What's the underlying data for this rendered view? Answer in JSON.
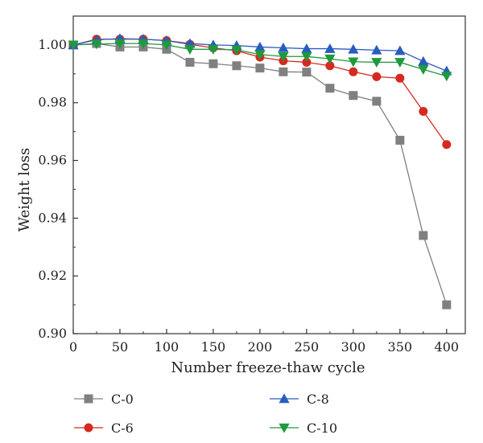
{
  "chart_data": {
    "type": "line",
    "title": "",
    "xlabel": "Number freeze-thaw cycle",
    "ylabel": "Weight loss",
    "xlim": [
      0,
      420
    ],
    "ylim": [
      0.9,
      1.01
    ],
    "xticks": [
      "0",
      "50",
      "100",
      "150",
      "200",
      "250",
      "300",
      "350",
      "400"
    ],
    "yticks": [
      "0.90",
      "0.92",
      "0.94",
      "0.96",
      "0.98",
      "1.00"
    ],
    "x": [
      0,
      25,
      50,
      75,
      100,
      125,
      150,
      175,
      200,
      225,
      250,
      275,
      300,
      325,
      350,
      375,
      400
    ],
    "grid": false,
    "legend_position": "bottom",
    "series": [
      {
        "name": "C-0",
        "color": "#808080",
        "marker": "square",
        "values": [
          1.0,
          1.0005,
          0.9993,
          0.9993,
          0.9985,
          0.994,
          0.9935,
          0.9928,
          0.992,
          0.9907,
          0.9906,
          0.985,
          0.9825,
          0.9805,
          0.967,
          0.934,
          0.91
        ]
      },
      {
        "name": "C-6",
        "color": "#d42a20",
        "marker": "circle",
        "values": [
          1.0,
          1.002,
          1.002,
          1.002,
          1.0015,
          1.0002,
          0.999,
          0.998,
          0.9958,
          0.9945,
          0.994,
          0.9928,
          0.9907,
          0.989,
          0.9885,
          0.977,
          0.9655
        ]
      },
      {
        "name": "C-8",
        "color": "#2a5cbe",
        "marker": "triangle-up",
        "values": [
          1.0,
          1.0018,
          1.0022,
          1.002,
          1.0015,
          1.0005,
          1.0,
          0.9998,
          0.9993,
          0.999,
          0.9987,
          0.9987,
          0.9985,
          0.9982,
          0.998,
          0.9943,
          0.991
        ]
      },
      {
        "name": "C-10",
        "color": "#1e9a3c",
        "marker": "triangle-down",
        "values": [
          1.0,
          1.0003,
          1.0005,
          1.0005,
          1.0,
          0.9985,
          0.9985,
          0.9983,
          0.9967,
          0.996,
          0.996,
          0.9952,
          0.9942,
          0.994,
          0.994,
          0.9915,
          0.9892
        ]
      }
    ]
  }
}
